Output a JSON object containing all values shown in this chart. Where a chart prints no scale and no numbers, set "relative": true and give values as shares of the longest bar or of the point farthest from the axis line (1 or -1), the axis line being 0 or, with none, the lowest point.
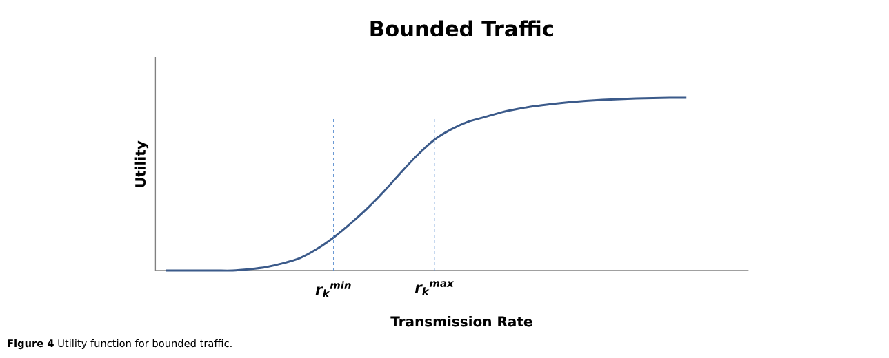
{
  "chart_data": {
    "type": "line",
    "title": "Bounded Traffic",
    "xlabel": "Transmission Rate",
    "ylabel": "Utility",
    "relative": true,
    "categories": [
      null,
      null,
      null,
      null,
      null,
      null,
      null,
      null,
      null,
      null,
      "r$_{k}$$^{min}$",
      null,
      null,
      null,
      null,
      null,
      "r$_{k}$$^{max}$",
      null,
      null,
      null,
      null,
      null,
      null,
      null,
      null,
      null,
      null,
      null,
      null,
      null,
      null,
      null
    ],
    "series": [
      {
        "color": "#3b5a8a",
        "values": [
          0,
          0,
          0,
          0,
          0,
          0.008,
          0.02,
          0.042,
          0.072,
          0.124,
          0.191,
          0.271,
          0.359,
          0.458,
          0.566,
          0.669,
          0.757,
          0.817,
          0.861,
          0.888,
          0.916,
          0.936,
          0.952,
          0.964,
          0.974,
          0.982,
          0.988,
          0.992,
          0.996,
          0.998,
          1,
          1
        ]
      }
    ],
    "annotations": [
      "**Figure 4** Utility function for bounded traffic."
    ]
  }
}
